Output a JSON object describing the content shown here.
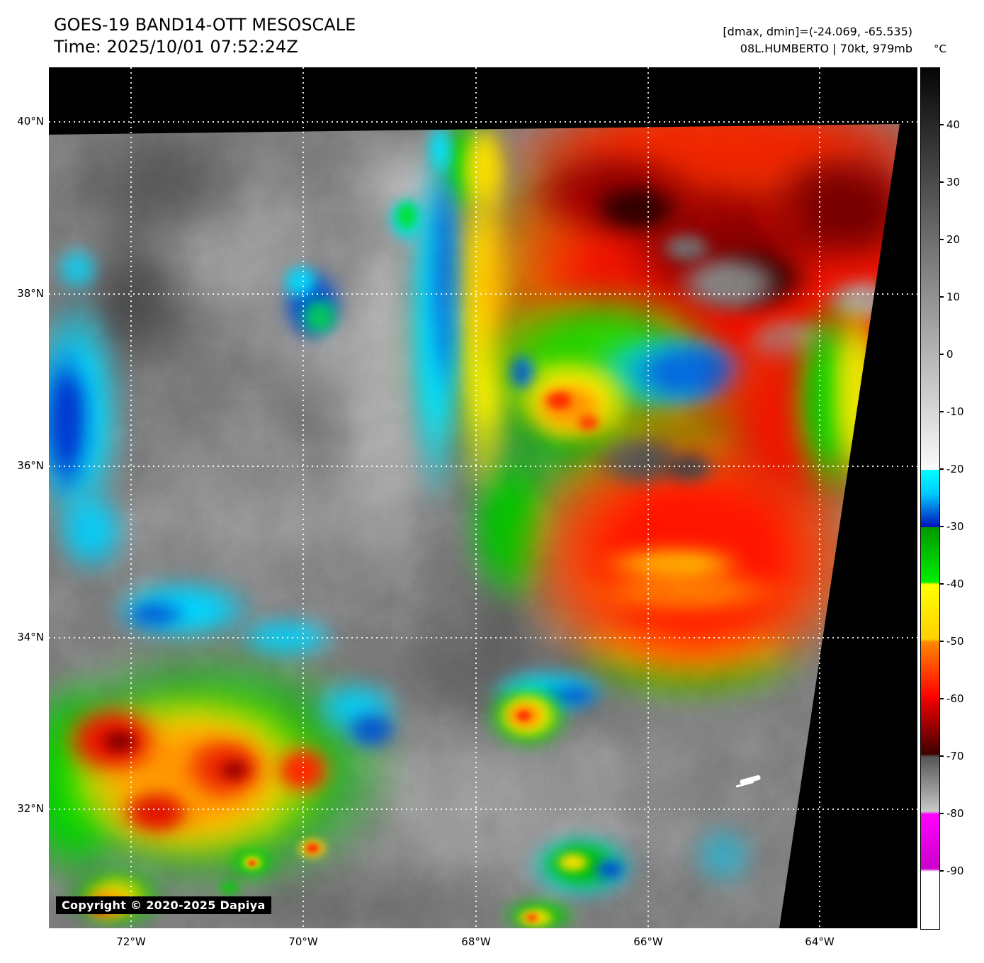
{
  "header": {
    "title": "GOES-19 BAND14-OTT MESOSCALE",
    "time_line": "Time: 2025/10/01 07:52:24Z",
    "range_line": "[dmax, dmin]=(-24.069, -65.535)",
    "storm_line": "08L.HUMBERTO | 70kt, 979mb"
  },
  "colorbar": {
    "unit_label": "°C",
    "tick_labels": [
      "40",
      "30",
      "20",
      "10",
      "0",
      "-10",
      "-20",
      "-30",
      "-40",
      "-50",
      "-60",
      "-70",
      "-80",
      "-90"
    ],
    "palette": {
      "warm_black": "#050505",
      "gray_white": "#ffffff",
      "cyan": "#00ffff",
      "blue": "#0011bb",
      "green": "#00ee00",
      "yellow": "#ffff00",
      "orange": "#ff8800",
      "red": "#ff0000",
      "dark_red": "#400000",
      "overshoot_gray": "#c8c8c8",
      "magenta": "#ff00ff",
      "coldest_white": "#ffffff"
    }
  },
  "map": {
    "lat_labels": [
      "40°N",
      "38°N",
      "36°N",
      "34°N",
      "32°N"
    ],
    "lon_labels": [
      "72°W",
      "70°W",
      "68°W",
      "66°W",
      "64°W"
    ],
    "copyright": "Copyright © 2020-2025 Dapiya"
  }
}
